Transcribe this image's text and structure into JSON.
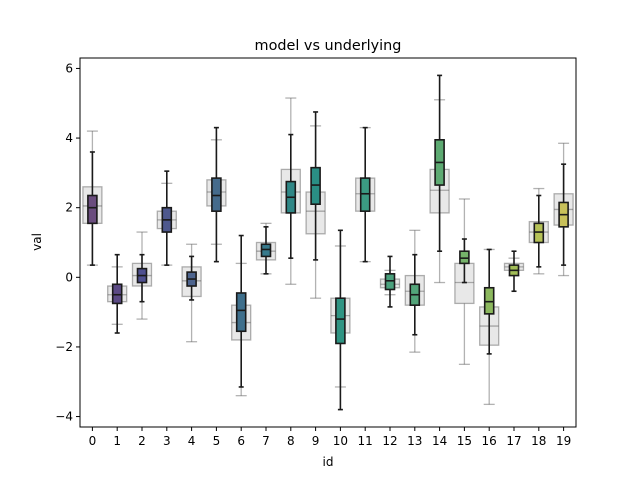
{
  "chart_data": {
    "type": "box",
    "title": "model vs underlying",
    "xlabel": "id",
    "ylabel": "val",
    "ylim": [
      -4.3,
      6.3
    ],
    "yticks": [
      -4,
      -2,
      0,
      2,
      4,
      6
    ],
    "ytick_labels": [
      "−4",
      "−2",
      "0",
      "2",
      "4",
      "6"
    ],
    "categories": [
      "0",
      "1",
      "2",
      "3",
      "4",
      "5",
      "6",
      "7",
      "8",
      "9",
      "10",
      "11",
      "12",
      "13",
      "14",
      "15",
      "16",
      "17",
      "18",
      "19"
    ],
    "series": [
      {
        "name": "underlying",
        "color": "#d9d9d9",
        "boxes": [
          {
            "whislo": 0.35,
            "q1": 1.55,
            "med": 2.05,
            "q3": 2.6,
            "whishi": 4.2
          },
          {
            "whislo": -1.35,
            "q1": -0.7,
            "med": -0.5,
            "q3": -0.25,
            "whishi": 0.3
          },
          {
            "whislo": -1.2,
            "q1": -0.25,
            "med": 0.05,
            "q3": 0.4,
            "whishi": 1.3
          },
          {
            "whislo": 0.35,
            "q1": 1.4,
            "med": 1.65,
            "q3": 1.9,
            "whishi": 2.7
          },
          {
            "whislo": -1.85,
            "q1": -0.55,
            "med": -0.1,
            "q3": 0.3,
            "whishi": 0.95
          },
          {
            "whislo": 0.95,
            "q1": 2.05,
            "med": 2.45,
            "q3": 2.8,
            "whishi": 3.95
          },
          {
            "whislo": -3.4,
            "q1": -1.8,
            "med": -1.3,
            "q3": -0.8,
            "whishi": 0.4
          },
          {
            "whislo": 0.1,
            "q1": 0.5,
            "med": 0.75,
            "q3": 1.0,
            "whishi": 1.55
          },
          {
            "whislo": -0.2,
            "q1": 1.85,
            "med": 2.45,
            "q3": 3.1,
            "whishi": 5.15
          },
          {
            "whislo": -0.6,
            "q1": 1.25,
            "med": 1.9,
            "q3": 2.45,
            "whishi": 4.35
          },
          {
            "whislo": -3.15,
            "q1": -1.6,
            "med": -1.1,
            "q3": -0.6,
            "whishi": 0.9
          },
          {
            "whislo": 0.45,
            "q1": 1.9,
            "med": 2.4,
            "q3": 2.85,
            "whishi": 4.3
          },
          {
            "whislo": -0.5,
            "q1": -0.3,
            "med": -0.2,
            "q3": -0.05,
            "whishi": 0.2
          },
          {
            "whislo": -2.15,
            "q1": -0.8,
            "med": -0.4,
            "q3": 0.05,
            "whishi": 1.35
          },
          {
            "whislo": -0.15,
            "q1": 1.85,
            "med": 2.5,
            "q3": 3.1,
            "whishi": 5.1
          },
          {
            "whislo": -2.5,
            "q1": -0.75,
            "med": -0.15,
            "q3": 0.4,
            "whishi": 2.25
          },
          {
            "whislo": -3.65,
            "q1": -1.95,
            "med": -1.4,
            "q3": -0.85,
            "whishi": 0.8
          },
          {
            "whislo": 0.05,
            "q1": 0.2,
            "med": 0.3,
            "q3": 0.4,
            "whishi": 0.55
          },
          {
            "whislo": 0.1,
            "q1": 1.0,
            "med": 1.3,
            "q3": 1.6,
            "whishi": 2.55
          },
          {
            "whislo": 0.05,
            "q1": 1.5,
            "med": 1.95,
            "q3": 2.4,
            "whishi": 3.85
          }
        ]
      },
      {
        "name": "model",
        "colors": [
          "#6a4c7e",
          "#5b4a85",
          "#4f5090",
          "#4e588d",
          "#4d648e",
          "#456b8c",
          "#3e6f8c",
          "#377a8c",
          "#2f8786",
          "#2a8e84",
          "#2f9483",
          "#3b9b82",
          "#4aa17d",
          "#53a57a",
          "#5daa72",
          "#75b26a",
          "#8cb85e",
          "#a2bd57",
          "#b5c157",
          "#c8c15a"
        ],
        "boxes": [
          {
            "whislo": 0.35,
            "q1": 1.55,
            "med": 2.0,
            "q3": 2.35,
            "whishi": 3.6
          },
          {
            "whislo": -1.6,
            "q1": -0.75,
            "med": -0.5,
            "q3": -0.2,
            "whishi": 0.65
          },
          {
            "whislo": -0.7,
            "q1": -0.15,
            "med": 0.05,
            "q3": 0.25,
            "whishi": 0.65
          },
          {
            "whislo": 0.35,
            "q1": 1.3,
            "med": 1.65,
            "q3": 2.0,
            "whishi": 3.05
          },
          {
            "whislo": -0.65,
            "q1": -0.25,
            "med": -0.05,
            "q3": 0.15,
            "whishi": 0.6
          },
          {
            "whislo": 0.45,
            "q1": 1.9,
            "med": 2.35,
            "q3": 2.85,
            "whishi": 4.3
          },
          {
            "whislo": -3.15,
            "q1": -1.55,
            "med": -0.95,
            "q3": -0.45,
            "whishi": 1.2
          },
          {
            "whislo": 0.1,
            "q1": 0.6,
            "med": 0.8,
            "q3": 0.95,
            "whishi": 1.45
          },
          {
            "whislo": 0.55,
            "q1": 1.85,
            "med": 2.3,
            "q3": 2.75,
            "whishi": 4.1
          },
          {
            "whislo": 0.5,
            "q1": 2.1,
            "med": 2.65,
            "q3": 3.15,
            "whishi": 4.75
          },
          {
            "whislo": -3.8,
            "q1": -1.9,
            "med": -1.2,
            "q3": -0.6,
            "whishi": 1.35
          },
          {
            "whislo": 0.45,
            "q1": 1.9,
            "med": 2.4,
            "q3": 2.85,
            "whishi": 4.3
          },
          {
            "whislo": -0.85,
            "q1": -0.35,
            "med": -0.1,
            "q3": 0.1,
            "whishi": 0.6
          },
          {
            "whislo": -1.65,
            "q1": -0.8,
            "med": -0.5,
            "q3": -0.2,
            "whishi": 0.65
          },
          {
            "whislo": 0.75,
            "q1": 2.65,
            "med": 3.3,
            "q3": 3.95,
            "whishi": 5.8
          },
          {
            "whislo": -0.15,
            "q1": 0.4,
            "med": 0.55,
            "q3": 0.75,
            "whishi": 1.1
          },
          {
            "whislo": -2.2,
            "q1": -1.05,
            "med": -0.7,
            "q3": -0.3,
            "whishi": 0.8
          },
          {
            "whislo": -0.4,
            "q1": 0.05,
            "med": 0.2,
            "q3": 0.35,
            "whishi": 0.75
          },
          {
            "whislo": 0.3,
            "q1": 1.0,
            "med": 1.3,
            "q3": 1.55,
            "whishi": 2.35
          },
          {
            "whislo": 0.35,
            "q1": 1.45,
            "med": 1.8,
            "q3": 2.15,
            "whishi": 3.25
          }
        ]
      }
    ],
    "grid": false,
    "legend": "none"
  }
}
